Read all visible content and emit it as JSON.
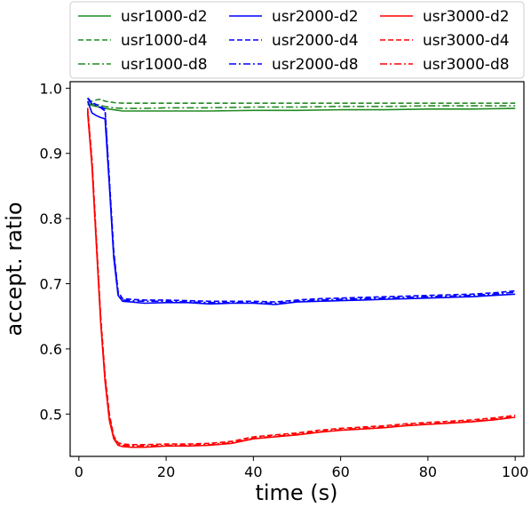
{
  "chart_data": {
    "type": "line",
    "title": "",
    "xlabel": "time (s)",
    "ylabel": "accept. ratio",
    "xlim": [
      -2,
      102
    ],
    "ylim": [
      0.435,
      1.01
    ],
    "xticks": [
      0,
      20,
      40,
      60,
      80,
      100
    ],
    "yticks": [
      0.5,
      0.6,
      0.7,
      0.8,
      0.9,
      1.0
    ],
    "xtick_labels": [
      "0",
      "20",
      "40",
      "60",
      "80",
      "100"
    ],
    "ytick_labels": [
      "0.5",
      "0.6",
      "0.7",
      "0.8",
      "0.9",
      "1.0"
    ],
    "grid": false,
    "legend_position": "top",
    "legend_columns": 3,
    "colors": {
      "usr1000": "#228b22",
      "usr2000": "#0000ff",
      "usr3000": "#ff0000"
    },
    "series": [
      {
        "name": "usr1000-d2",
        "color": "#228b22",
        "dash": "solid",
        "x": [
          2,
          4,
          6,
          8,
          10,
          15,
          20,
          30,
          40,
          50,
          60,
          70,
          80,
          90,
          100
        ],
        "y": [
          0.975,
          0.972,
          0.969,
          0.967,
          0.965,
          0.965,
          0.965,
          0.965,
          0.966,
          0.966,
          0.967,
          0.967,
          0.968,
          0.968,
          0.969
        ]
      },
      {
        "name": "usr1000-d4",
        "color": "#228b22",
        "dash": "dashed",
        "x": [
          2,
          4,
          5,
          6,
          8,
          10,
          15,
          20,
          30,
          40,
          50,
          60,
          70,
          80,
          90,
          100
        ],
        "y": [
          0.978,
          0.982,
          0.983,
          0.98,
          0.978,
          0.977,
          0.977,
          0.977,
          0.977,
          0.977,
          0.977,
          0.977,
          0.977,
          0.977,
          0.977,
          0.977
        ]
      },
      {
        "name": "usr1000-d8",
        "color": "#228b22",
        "dash": "dashdot",
        "x": [
          2,
          4,
          6,
          8,
          10,
          15,
          20,
          30,
          40,
          50,
          60,
          70,
          80,
          90,
          100
        ],
        "y": [
          0.976,
          0.975,
          0.972,
          0.97,
          0.969,
          0.969,
          0.97,
          0.97,
          0.971,
          0.971,
          0.972,
          0.972,
          0.973,
          0.973,
          0.973
        ]
      },
      {
        "name": "usr2000-d2",
        "color": "#0000ff",
        "dash": "solid",
        "x": [
          2,
          3,
          4,
          5,
          6,
          7,
          8,
          9,
          10,
          12,
          15,
          20,
          25,
          30,
          35,
          40,
          45,
          50,
          55,
          60,
          65,
          70,
          75,
          80,
          85,
          90,
          95,
          100
        ],
        "y": [
          0.98,
          0.962,
          0.958,
          0.955,
          0.953,
          0.85,
          0.74,
          0.682,
          0.673,
          0.672,
          0.67,
          0.671,
          0.671,
          0.669,
          0.67,
          0.67,
          0.668,
          0.672,
          0.673,
          0.674,
          0.675,
          0.676,
          0.677,
          0.678,
          0.679,
          0.68,
          0.682,
          0.684
        ]
      },
      {
        "name": "usr2000-d4",
        "color": "#0000ff",
        "dash": "dashed",
        "x": [
          2,
          3,
          4,
          5,
          6,
          7,
          8,
          9,
          10,
          12,
          15,
          20,
          25,
          30,
          35,
          40,
          45,
          50,
          55,
          60,
          65,
          70,
          75,
          80,
          85,
          90,
          95,
          100
        ],
        "y": [
          0.985,
          0.978,
          0.975,
          0.972,
          0.968,
          0.86,
          0.75,
          0.688,
          0.677,
          0.676,
          0.675,
          0.675,
          0.674,
          0.673,
          0.673,
          0.673,
          0.672,
          0.675,
          0.677,
          0.678,
          0.679,
          0.68,
          0.681,
          0.682,
          0.683,
          0.684,
          0.686,
          0.689
        ]
      },
      {
        "name": "usr2000-d8",
        "color": "#0000ff",
        "dash": "dashdot",
        "x": [
          2,
          3,
          4,
          5,
          6,
          7,
          8,
          9,
          10,
          12,
          15,
          20,
          25,
          30,
          35,
          40,
          45,
          50,
          55,
          60,
          65,
          70,
          75,
          80,
          85,
          90,
          95,
          100
        ],
        "y": [
          0.984,
          0.976,
          0.973,
          0.97,
          0.965,
          0.855,
          0.745,
          0.685,
          0.675,
          0.674,
          0.673,
          0.673,
          0.672,
          0.671,
          0.671,
          0.671,
          0.67,
          0.673,
          0.675,
          0.676,
          0.677,
          0.678,
          0.679,
          0.68,
          0.681,
          0.682,
          0.684,
          0.687
        ]
      },
      {
        "name": "usr3000-d2",
        "color": "#ff0000",
        "dash": "solid",
        "x": [
          2,
          3,
          4,
          5,
          6,
          7,
          8,
          9,
          10,
          12,
          15,
          20,
          25,
          30,
          35,
          40,
          45,
          50,
          55,
          60,
          65,
          70,
          75,
          80,
          85,
          90,
          95,
          100
        ],
        "y": [
          0.962,
          0.88,
          0.76,
          0.64,
          0.55,
          0.49,
          0.462,
          0.452,
          0.45,
          0.449,
          0.449,
          0.451,
          0.451,
          0.452,
          0.455,
          0.462,
          0.465,
          0.468,
          0.472,
          0.475,
          0.477,
          0.479,
          0.482,
          0.484,
          0.486,
          0.488,
          0.491,
          0.495
        ]
      },
      {
        "name": "usr3000-d4",
        "color": "#ff0000",
        "dash": "dashed",
        "x": [
          2,
          3,
          4,
          5,
          6,
          7,
          8,
          9,
          10,
          12,
          15,
          20,
          25,
          30,
          35,
          40,
          45,
          50,
          55,
          60,
          65,
          70,
          75,
          80,
          85,
          90,
          95,
          100
        ],
        "y": [
          0.97,
          0.89,
          0.77,
          0.65,
          0.56,
          0.5,
          0.466,
          0.456,
          0.454,
          0.453,
          0.453,
          0.454,
          0.454,
          0.455,
          0.458,
          0.465,
          0.468,
          0.471,
          0.475,
          0.478,
          0.48,
          0.482,
          0.485,
          0.487,
          0.489,
          0.491,
          0.494,
          0.498
        ]
      },
      {
        "name": "usr3000-d8",
        "color": "#ff0000",
        "dash": "dashdot",
        "x": [
          2,
          3,
          4,
          5,
          6,
          7,
          8,
          9,
          10,
          12,
          15,
          20,
          25,
          30,
          35,
          40,
          45,
          50,
          55,
          60,
          65,
          70,
          75,
          80,
          85,
          90,
          95,
          100
        ],
        "y": [
          0.966,
          0.885,
          0.765,
          0.645,
          0.555,
          0.495,
          0.464,
          0.454,
          0.452,
          0.451,
          0.451,
          0.452,
          0.452,
          0.453,
          0.456,
          0.463,
          0.466,
          0.469,
          0.473,
          0.476,
          0.478,
          0.48,
          0.483,
          0.485,
          0.487,
          0.489,
          0.492,
          0.496
        ]
      }
    ]
  }
}
